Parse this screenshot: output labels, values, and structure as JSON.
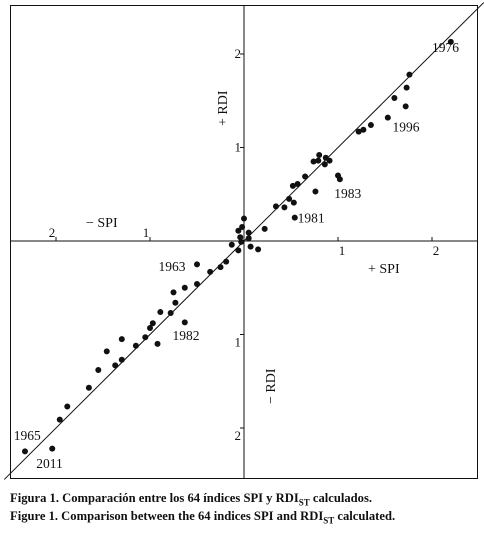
{
  "caption": {
    "es": {
      "prefix": "Figura 1. Comparación entre los 64 índices SPI y RDI",
      "sub": "ST",
      "suffix": " calculados."
    },
    "en": {
      "prefix": "Figure 1. Comparison between the 64 indices SPI and RDI",
      "sub": "ST",
      "suffix": " calculated."
    }
  },
  "chart_data": {
    "type": "scatter",
    "title": "",
    "xlim": [
      -2.55,
      2.55
    ],
    "ylim": [
      -2.55,
      2.55
    ],
    "grid": false,
    "axis_labels": {
      "x_negative": "− SPI",
      "x_positive": "+ SPI",
      "y_positive": "+ RDI",
      "y_negative": "− RDI"
    },
    "x_ticks": [
      {
        "value": -2,
        "label": "2"
      },
      {
        "value": -1,
        "label": "1"
      },
      {
        "value": 1,
        "label": "1"
      },
      {
        "value": 2,
        "label": "2"
      }
    ],
    "y_ticks": [
      {
        "value": 2,
        "label": "2"
      },
      {
        "value": 1,
        "label": "1"
      },
      {
        "value": -1,
        "label": "1"
      },
      {
        "value": -2,
        "label": "2"
      }
    ],
    "reference_line": {
      "type": "1:1",
      "x": [
        -2.55,
        2.55
      ],
      "y": [
        -2.55,
        2.55
      ]
    },
    "points": [
      [
        2.2,
        2.13
      ],
      [
        1.76,
        1.78
      ],
      [
        1.73,
        1.64
      ],
      [
        1.6,
        1.53
      ],
      [
        1.72,
        1.44
      ],
      [
        1.53,
        1.32
      ],
      [
        1.35,
        1.24
      ],
      [
        1.27,
        1.19
      ],
      [
        1.22,
        1.17
      ],
      [
        1.0,
        0.7
      ],
      [
        1.02,
        0.66
      ],
      [
        0.91,
        0.86
      ],
      [
        0.86,
        0.82
      ],
      [
        0.8,
        0.92
      ],
      [
        0.79,
        0.86
      ],
      [
        0.87,
        0.89
      ],
      [
        0.74,
        0.85
      ],
      [
        0.76,
        0.53
      ],
      [
        0.65,
        0.69
      ],
      [
        0.57,
        0.61
      ],
      [
        0.52,
        0.59
      ],
      [
        0.48,
        0.45
      ],
      [
        0.53,
        0.41
      ],
      [
        0.43,
        0.36
      ],
      [
        0.34,
        0.37
      ],
      [
        0.54,
        0.25
      ],
      [
        0.22,
        0.13
      ],
      [
        0.0,
        0.24
      ],
      [
        -0.02,
        0.15
      ],
      [
        0.05,
        0.09
      ],
      [
        -0.06,
        0.11
      ],
      [
        -0.04,
        0.04
      ],
      [
        0.05,
        0.03
      ],
      [
        -0.03,
        -0.01
      ],
      [
        -0.13,
        -0.04
      ],
      [
        -0.06,
        -0.1
      ],
      [
        0.07,
        -0.06
      ],
      [
        0.15,
        -0.09
      ],
      [
        -0.19,
        -0.22
      ],
      [
        -0.25,
        -0.28
      ],
      [
        -0.36,
        -0.33
      ],
      [
        -0.5,
        -0.46
      ],
      [
        -0.5,
        -0.25
      ],
      [
        -0.63,
        -0.5
      ],
      [
        -0.75,
        -0.55
      ],
      [
        -0.73,
        -0.66
      ],
      [
        -0.63,
        -0.87
      ],
      [
        -0.78,
        -0.77
      ],
      [
        -0.89,
        -0.76
      ],
      [
        -0.97,
        -0.88
      ],
      [
        -1.0,
        -0.93
      ],
      [
        -1.05,
        -1.03
      ],
      [
        -0.92,
        -1.1
      ],
      [
        -1.15,
        -1.12
      ],
      [
        -1.3,
        -1.05
      ],
      [
        -1.3,
        -1.27
      ],
      [
        -1.37,
        -1.33
      ],
      [
        -1.46,
        -1.18
      ],
      [
        -1.55,
        -1.38
      ],
      [
        -1.65,
        -1.57
      ],
      [
        -1.88,
        -1.77
      ],
      [
        -1.96,
        -1.91
      ],
      [
        -2.04,
        -2.22
      ],
      [
        -2.33,
        -2.25
      ]
    ],
    "annotations": [
      {
        "text": "1976",
        "x": 2.0,
        "y": 2.02,
        "anchor": "start"
      },
      {
        "text": "1996",
        "x": 1.58,
        "y": 1.17,
        "anchor": "start"
      },
      {
        "text": "1983",
        "x": 0.96,
        "y": 0.46,
        "anchor": "start"
      },
      {
        "text": "1981",
        "x": 0.57,
        "y": 0.2,
        "anchor": "start"
      },
      {
        "text": "1963",
        "x": -0.91,
        "y": -0.32,
        "anchor": "start"
      },
      {
        "text": "1982",
        "x": -0.76,
        "y": -1.06,
        "anchor": "start"
      },
      {
        "text": "1965",
        "x": -2.45,
        "y": -2.13,
        "anchor": "start"
      },
      {
        "text": "2011",
        "x": -2.21,
        "y": -2.43,
        "anchor": "start"
      }
    ]
  }
}
